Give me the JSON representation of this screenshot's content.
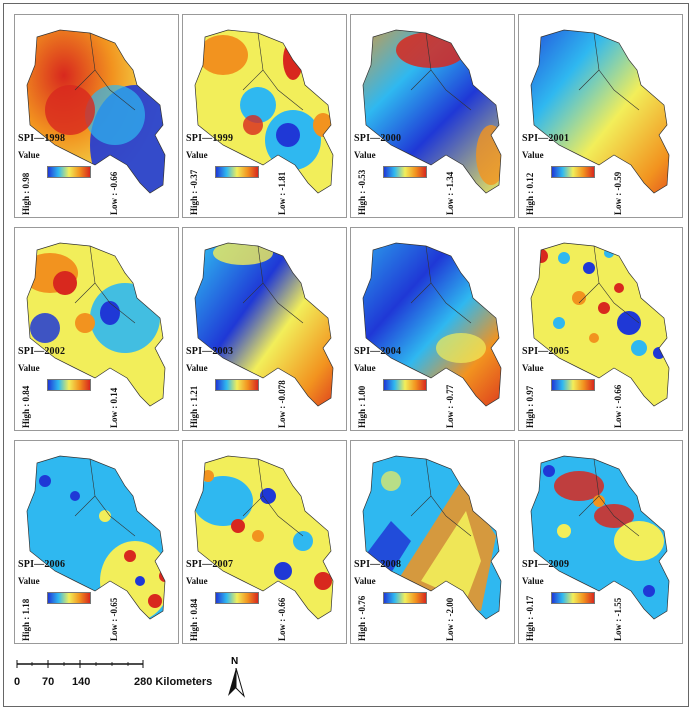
{
  "legend_heading": "Value",
  "colors": {
    "ramp": [
      "#1f38d6",
      "#2fb8f0",
      "#f2ee5a",
      "#f2931f",
      "#d8281e"
    ]
  },
  "panels": [
    {
      "title": "SPI—1998",
      "high": "High : 0.98",
      "low": "Low : -0.66"
    },
    {
      "title": "SPI—1999",
      "high": "High : -0.37",
      "low": "Low : -1.81"
    },
    {
      "title": "SPI—2000",
      "high": "High : -0.53",
      "low": "Low : -1.34"
    },
    {
      "title": "SPI—2001",
      "high": "High : 0.12",
      "low": "Low : -0.59"
    },
    {
      "title": "SPI—2002",
      "high": "High : 0.84",
      "low": "Low : 0.14"
    },
    {
      "title": "SPI—2003",
      "high": "High : 1.21",
      "low": "Low : -0.078"
    },
    {
      "title": "SPI—2004",
      "high": "High : 1.00",
      "low": "Low : -0.77"
    },
    {
      "title": "SPI—2005",
      "high": "High : 0.97",
      "low": "Low : -0.66"
    },
    {
      "title": "SPI—2006",
      "high": "High : 1.18",
      "low": "Low : -0.65"
    },
    {
      "title": "SPI—2007",
      "high": "High : 0.84",
      "low": "Low : -0.66"
    },
    {
      "title": "SPI—2008",
      "high": "High : -0.76",
      "low": "Low : -2.00"
    },
    {
      "title": "SPI—2009",
      "high": "High : -0.17",
      "low": "Low : -1.55"
    }
  ],
  "scale_bar": {
    "ticks": [
      "0",
      "70",
      "140",
      "280 Kilometers"
    ]
  },
  "north_arrow": {
    "label": "N",
    "icon": "north-arrow-icon"
  }
}
